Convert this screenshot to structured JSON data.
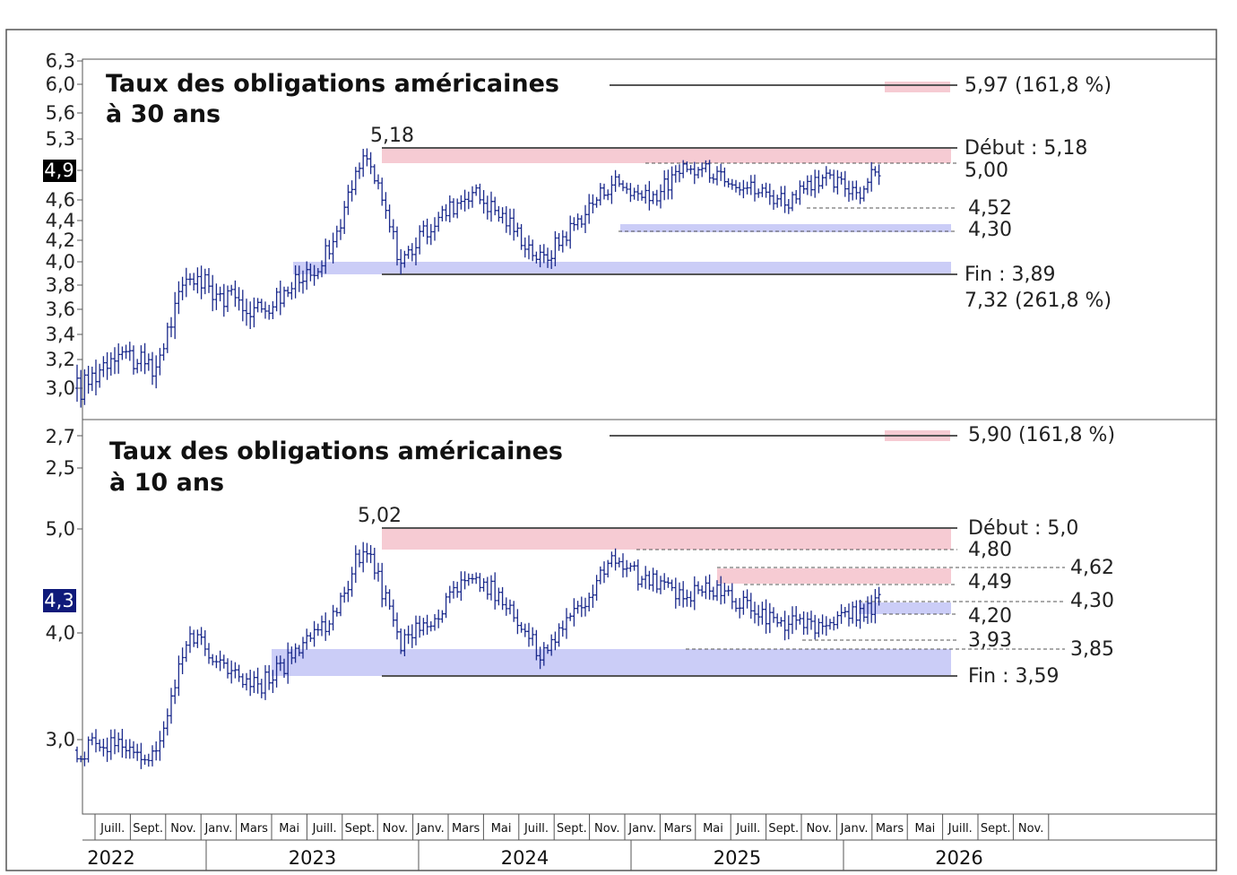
{
  "charts": [
    {
      "id": "p30",
      "title_lines": [
        "Taux des obligations américaines",
        "à 30 ans"
      ],
      "ticks": [
        "6,3",
        "6,0",
        "5,6",
        "5,3",
        "4,9",
        "4,6",
        "4,4",
        "4,2",
        "4,0",
        "3,8",
        "3,6",
        "3,4",
        "3,2",
        "3,0"
      ],
      "current_label": "4,9",
      "current_color": "#000000",
      "peak_label": "5,18",
      "annotations": [
        "5,97 (161,8 %)",
        "Début : 5,18",
        "5,00",
        "4,52",
        "4,30",
        "Fin : 3,89",
        "7,32 (261,8 %)"
      ]
    },
    {
      "id": "p10",
      "title_lines": [
        "Taux des obligations américaines",
        "à 10 ans"
      ],
      "ticks": [
        "2,7",
        "2,5",
        "5,0",
        "4,0",
        "3,0"
      ],
      "current_label": "4,3",
      "current_color": "#0f1a7a",
      "peak_label": "5,02",
      "annotations": [
        "5,90 (161,8 %)",
        "Début : 5,0",
        "4,80",
        "4,62",
        "4,49",
        "4,30",
        "4,20",
        "3,93",
        "3,85",
        "Fin : 3,59"
      ]
    }
  ],
  "months": [
    "Juill.",
    "Sept.",
    "Nov.",
    "Janv.",
    "Mars",
    "Mai",
    "Juill.",
    "Sept.",
    "Nov.",
    "Janv.",
    "Mars",
    "Mai",
    "Juill.",
    "Sept.",
    "Nov.",
    "Janv.",
    "Mars",
    "Mai",
    "Juill.",
    "Sept.",
    "Nov.",
    "Janv.",
    "Mars",
    "Mai",
    "Juill.",
    "Sept.",
    "Nov."
  ],
  "years": [
    "2022",
    "2023",
    "2024",
    "2025",
    "2026"
  ],
  "colors": {
    "bars": "#1b2a8c",
    "pink": "#f6cbd3",
    "blue": "#cbcdf7",
    "frame": "#555555",
    "dashed": "#555555"
  },
  "chart_data": [
    {
      "type": "line",
      "title": "Taux des obligations américaines à 30 ans",
      "unit": "%",
      "x": [
        "2022-06",
        "2022-08",
        "2022-10",
        "2022-12",
        "2023-02",
        "2023-04",
        "2023-06",
        "2023-08",
        "2023-10",
        "2023-12",
        "2024-02",
        "2024-04",
        "2024-06",
        "2024-08",
        "2024-10",
        "2024-12",
        "2025-02",
        "2025-04",
        "2025-06",
        "2025-08",
        "2025-10",
        "2025-12",
        "2026-02",
        "2026-03"
      ],
      "values": [
        3.0,
        3.3,
        3.1,
        3.9,
        3.7,
        3.6,
        3.8,
        4.1,
        5.1,
        4.0,
        4.4,
        4.7,
        4.4,
        4.0,
        4.4,
        4.8,
        4.6,
        4.9,
        4.9,
        4.7,
        4.6,
        4.8,
        4.7,
        4.9
      ],
      "levels": {
        "extension_161_8": 5.97,
        "debut": 5.18,
        "resistance": 5.0,
        "support_1": 4.52,
        "support_2": 4.3,
        "fin": 3.89,
        "extension_261_8": 7.32
      }
    },
    {
      "type": "line",
      "title": "Taux des obligations américaines à 10 ans",
      "unit": "%",
      "x": [
        "2022-06",
        "2022-08",
        "2022-10",
        "2022-12",
        "2023-02",
        "2023-04",
        "2023-06",
        "2023-08",
        "2023-10",
        "2023-12",
        "2024-02",
        "2024-04",
        "2024-06",
        "2024-08",
        "2024-10",
        "2024-12",
        "2025-02",
        "2025-04",
        "2025-06",
        "2025-08",
        "2025-10",
        "2025-12",
        "2026-02",
        "2026-03"
      ],
      "values": [
        2.9,
        3.0,
        2.8,
        4.0,
        3.7,
        3.5,
        3.8,
        4.1,
        4.9,
        3.9,
        4.2,
        4.6,
        4.3,
        3.8,
        4.2,
        4.7,
        4.5,
        4.4,
        4.4,
        4.2,
        4.1,
        4.1,
        4.2,
        4.3
      ],
      "levels": {
        "extension_161_8": 5.9,
        "debut": 5.0,
        "resistance": 4.8,
        "resistance_2": 4.62,
        "level_449": 4.49,
        "level_430": 4.3,
        "level_420": 4.2,
        "support": 3.93,
        "support_2": 3.85,
        "fin": 3.59
      }
    }
  ]
}
